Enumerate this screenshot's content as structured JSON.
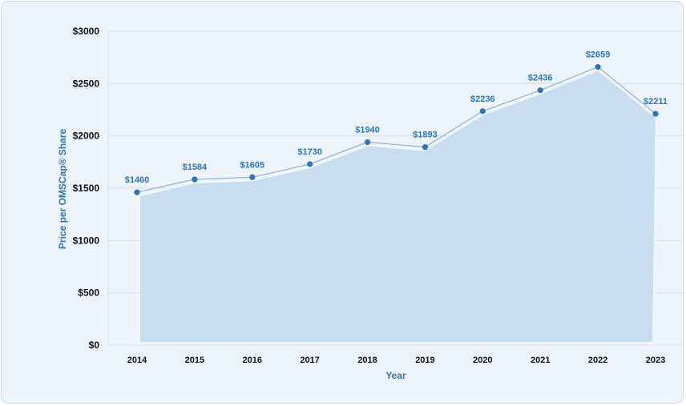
{
  "chart_data": {
    "type": "area",
    "title": "",
    "xlabel": "Year",
    "ylabel": "Price per OMSCap® Share",
    "categories": [
      "2014",
      "2015",
      "2016",
      "2017",
      "2018",
      "2019",
      "2020",
      "2021",
      "2022",
      "2023"
    ],
    "values": [
      1460,
      1584,
      1605,
      1730,
      1940,
      1893,
      2236,
      2436,
      2659,
      2211
    ],
    "data_labels": [
      "$1460",
      "$1584",
      "$1605",
      "$1730",
      "$1940",
      "$1893",
      "$2236",
      "$2436",
      "$2659",
      "$2211"
    ],
    "ylim": [
      0,
      3000
    ],
    "y_ticks": [
      0,
      500,
      1000,
      1500,
      2000,
      2500,
      3000
    ],
    "y_tick_labels": [
      "$0",
      "$500",
      "$1000",
      "$1500",
      "$2000",
      "$2500",
      "$3000"
    ],
    "grid": true,
    "legend": "none",
    "colors": {
      "area_fill": "#c9ddf1",
      "line": "#8fb0d2",
      "marker": "#2e75b6",
      "label": "#2e75b6",
      "grid": "#d7e0ea"
    }
  }
}
